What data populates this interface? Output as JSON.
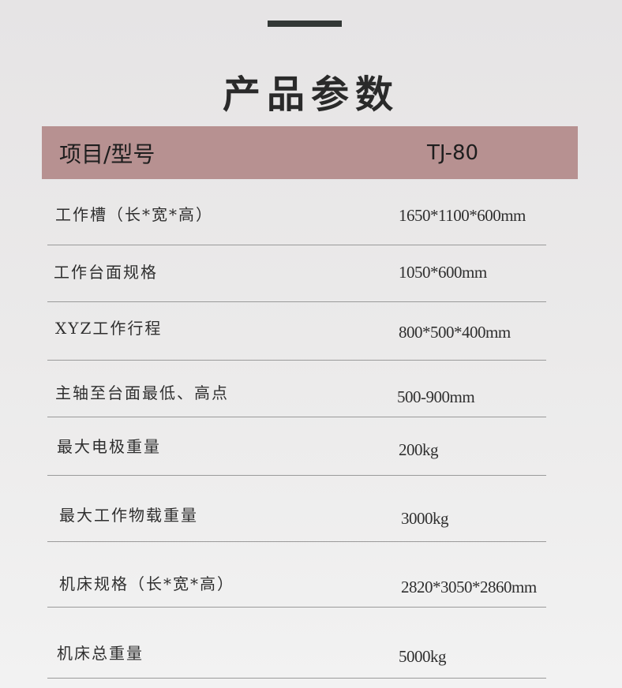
{
  "title": "产品参数",
  "header": {
    "label": "项目/型号",
    "model": "TJ-80"
  },
  "rows": [
    {
      "label": "工作槽（长*宽*高）",
      "value": "1650*1100*600mm"
    },
    {
      "label": "工作台面规格",
      "value": "1050*600mm"
    },
    {
      "label": "XYZ工作行程",
      "value": "800*500*400mm"
    },
    {
      "label": "主轴至台面最低、高点",
      "value": "500-900mm"
    },
    {
      "label": "最大电极重量",
      "value": "200kg"
    },
    {
      "label": "最大工作物载重量",
      "value": "3000kg"
    },
    {
      "label": "机床规格（长*宽*高）",
      "value": "2820*3050*2860mm"
    },
    {
      "label": "机床总重量",
      "value": "5000kg"
    }
  ]
}
